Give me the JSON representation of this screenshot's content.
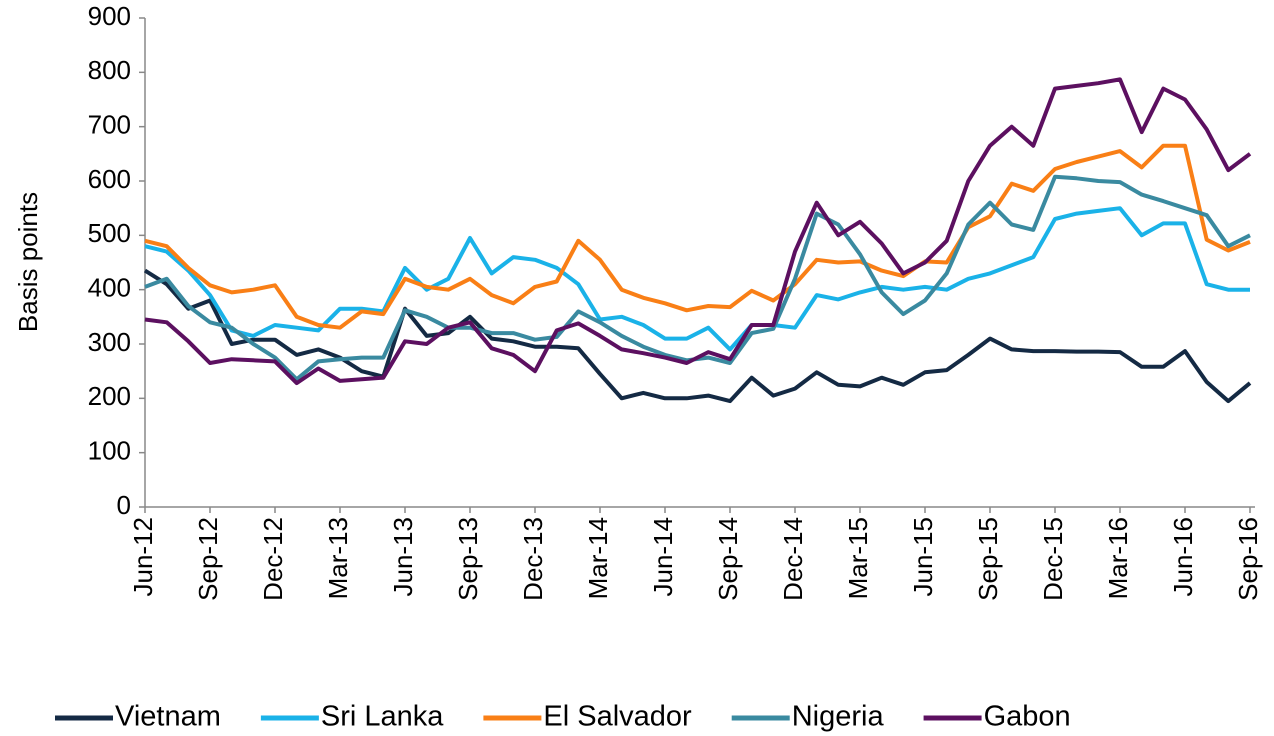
{
  "chart_data": {
    "type": "line",
    "ylabel": "Basis points",
    "categories": [
      "Jun-12",
      null,
      null,
      "Sep-12",
      null,
      null,
      "Dec-12",
      null,
      null,
      "Mar-13",
      null,
      null,
      "Jun-13",
      null,
      null,
      "Sep-13",
      null,
      null,
      "Dec-13",
      null,
      null,
      "Mar-14",
      null,
      null,
      "Jun-14",
      null,
      null,
      "Sep-14",
      null,
      null,
      "Dec-14",
      null,
      null,
      "Mar-15",
      null,
      null,
      "Jun-15",
      null,
      null,
      "Sep-15",
      null,
      null,
      "Dec-15",
      null,
      null,
      "Mar-16",
      null,
      null,
      "Jun-16",
      null,
      null,
      "Sep-16"
    ],
    "series": [
      {
        "name": "Vietnam",
        "color": "#142a44",
        "values": [
          435,
          410,
          365,
          380,
          300,
          308,
          308,
          280,
          290,
          275,
          250,
          240,
          365,
          315,
          320,
          350,
          310,
          305,
          295,
          295,
          292,
          245,
          200,
          210,
          200,
          200,
          205,
          195,
          238,
          205,
          218,
          248,
          225,
          222,
          238,
          225,
          248,
          252,
          280,
          310,
          290,
          287,
          287,
          286,
          286,
          285,
          258,
          258,
          287,
          230,
          195,
          228
        ]
      },
      {
        "name": "Sri Lanka",
        "color": "#1ab2e8",
        "values": [
          480,
          470,
          435,
          390,
          325,
          315,
          335,
          330,
          325,
          365,
          365,
          360,
          440,
          400,
          420,
          495,
          430,
          460,
          455,
          440,
          410,
          345,
          350,
          335,
          310,
          310,
          330,
          290,
          335,
          335,
          330,
          390,
          382,
          395,
          405,
          400,
          405,
          400,
          420,
          430,
          445,
          460,
          530,
          540,
          545,
          550,
          500,
          522,
          522,
          410,
          400,
          400
        ]
      },
      {
        "name": "El Salvador",
        "color": "#f97f16",
        "values": [
          490,
          480,
          440,
          408,
          395,
          400,
          408,
          350,
          335,
          330,
          360,
          355,
          420,
          405,
          400,
          420,
          390,
          375,
          405,
          415,
          490,
          455,
          400,
          385,
          375,
          362,
          370,
          368,
          398,
          380,
          410,
          455,
          450,
          452,
          435,
          425,
          452,
          450,
          515,
          535,
          595,
          582,
          622,
          635,
          645,
          655,
          625,
          665,
          665,
          492,
          472,
          488
        ]
      },
      {
        "name": "Nigeria",
        "color": "#3a8aa0",
        "values": [
          405,
          420,
          370,
          340,
          330,
          300,
          275,
          235,
          268,
          272,
          275,
          275,
          362,
          350,
          330,
          330,
          320,
          320,
          308,
          313,
          360,
          340,
          315,
          295,
          280,
          270,
          275,
          265,
          320,
          328,
          420,
          540,
          520,
          465,
          395,
          355,
          380,
          430,
          520,
          560,
          520,
          510,
          608,
          605,
          600,
          598,
          575,
          563,
          550,
          537,
          480,
          500
        ]
      },
      {
        "name": "Gabon",
        "color": "#5c1060",
        "values": [
          345,
          340,
          305,
          265,
          272,
          270,
          268,
          228,
          255,
          232,
          235,
          238,
          305,
          300,
          330,
          340,
          292,
          280,
          250,
          325,
          338,
          315,
          290,
          283,
          275,
          265,
          285,
          272,
          335,
          335,
          470,
          560,
          500,
          525,
          485,
          430,
          450,
          490,
          600,
          665,
          700,
          665,
          770,
          775,
          780,
          787,
          690,
          770,
          750,
          695,
          620,
          650
        ]
      }
    ],
    "ylim": [
      0,
      900
    ],
    "yticks": [
      0,
      100,
      200,
      300,
      400,
      500,
      600,
      700,
      800,
      900
    ]
  }
}
